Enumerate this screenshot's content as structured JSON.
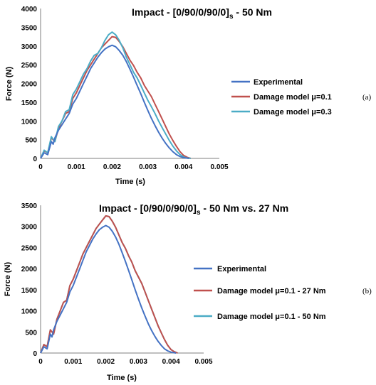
{
  "colors": {
    "experimental": "#4472c4",
    "mu01": "#c0504d",
    "mu03": "#4bacc6"
  },
  "chart_data": [
    {
      "type": "line",
      "title": "Impact - [0/90/0/90/0]s - 50 Nm",
      "title_main": "Impact - [0/90/0/90/0]",
      "title_sub": "s",
      "title_tail": " - 50 Nm",
      "xlabel": "Time (s)",
      "ylabel": "Force (N)",
      "xlim": [
        0,
        0.005
      ],
      "ylim": [
        0,
        4000
      ],
      "xticks": [
        "0",
        "0.001",
        "0.002",
        "0.003",
        "0.004",
        "0.005"
      ],
      "yticks": [
        "0",
        "500",
        "1000",
        "1500",
        "2000",
        "2500",
        "3000",
        "3500",
        "4000"
      ],
      "grid": false,
      "legend": "right",
      "panel_label": "(a)",
      "series": [
        {
          "name": "Experimental",
          "x": [
            0,
            0.0001,
            0.0002,
            0.0003,
            0.00035,
            0.0004,
            0.0005,
            0.0006,
            0.0007,
            0.0008,
            0.0009,
            0.001,
            0.0011,
            0.0012,
            0.0013,
            0.0014,
            0.0015,
            0.0016,
            0.0017,
            0.0018,
            0.0019,
            0.002,
            0.0021,
            0.0022,
            0.0023,
            0.0024,
            0.0025,
            0.0026,
            0.0027,
            0.0028,
            0.0029,
            0.003,
            0.0031,
            0.0032,
            0.0033,
            0.0034,
            0.0035,
            0.0036,
            0.0037,
            0.0038,
            0.0039,
            0.004,
            0.00415
          ],
          "y": [
            0,
            150,
            100,
            450,
            380,
            550,
            750,
            900,
            1050,
            1200,
            1450,
            1600,
            1800,
            2000,
            2200,
            2400,
            2550,
            2700,
            2820,
            2920,
            2980,
            3020,
            2980,
            2880,
            2750,
            2580,
            2380,
            2170,
            1950,
            1730,
            1500,
            1280,
            1070,
            880,
            700,
            540,
            400,
            280,
            180,
            100,
            50,
            20,
            0
          ]
        },
        {
          "name": "Damage model μ=0.1",
          "x": [
            0,
            0.0001,
            0.0002,
            0.0003,
            0.0004,
            0.0005,
            0.0006,
            0.0007,
            0.0008,
            0.0009,
            0.001,
            0.0011,
            0.0012,
            0.0013,
            0.0014,
            0.0015,
            0.0016,
            0.0017,
            0.0018,
            0.0019,
            0.002,
            0.0021,
            0.0022,
            0.0023,
            0.0024,
            0.0025,
            0.0026,
            0.0027,
            0.0028,
            0.0029,
            0.003,
            0.0031,
            0.0032,
            0.0033,
            0.0034,
            0.0035,
            0.0036,
            0.0037,
            0.0038,
            0.0039,
            0.004,
            0.0041,
            0.0042
          ],
          "y": [
            0,
            200,
            150,
            550,
            450,
            800,
            1000,
            1200,
            1250,
            1600,
            1750,
            1950,
            2150,
            2350,
            2500,
            2650,
            2800,
            2950,
            3050,
            3150,
            3250,
            3230,
            3120,
            2980,
            2800,
            2620,
            2480,
            2300,
            2150,
            1950,
            1800,
            1650,
            1450,
            1250,
            1050,
            850,
            650,
            480,
            320,
            180,
            80,
            30,
            0
          ]
        },
        {
          "name": "Damage model μ=0.3",
          "x": [
            0,
            0.0001,
            0.0002,
            0.0003,
            0.0004,
            0.0005,
            0.0006,
            0.0007,
            0.0008,
            0.0009,
            0.001,
            0.0011,
            0.0012,
            0.0013,
            0.0014,
            0.0015,
            0.0016,
            0.0017,
            0.0018,
            0.0019,
            0.002,
            0.0021,
            0.0022,
            0.0023,
            0.0024,
            0.0025,
            0.0026,
            0.0027,
            0.0028,
            0.0029,
            0.003,
            0.0031,
            0.0032,
            0.0033,
            0.0034,
            0.0035,
            0.0036,
            0.0037,
            0.0038,
            0.0039,
            0.004,
            0.0041,
            0.0042
          ],
          "y": [
            0,
            220,
            150,
            580,
            450,
            850,
            1000,
            1250,
            1300,
            1700,
            1850,
            2050,
            2250,
            2400,
            2600,
            2750,
            2800,
            2950,
            3150,
            3300,
            3370,
            3300,
            3150,
            2950,
            2700,
            2500,
            2300,
            2150,
            1950,
            1750,
            1550,
            1380,
            1200,
            1000,
            820,
            650,
            480,
            330,
            200,
            100,
            40,
            10,
            0
          ]
        }
      ]
    },
    {
      "type": "line",
      "title": "Impact - [0/90/0/90/0]s - 50 Nm vs. 27 Nm",
      "title_main": "Impact - [0/90/0/90/0]",
      "title_sub": "s",
      "title_tail": " - 50 Nm vs. 27 Nm",
      "xlabel": "Time (s)",
      "ylabel": "Force (N)",
      "xlim": [
        0,
        0.005
      ],
      "ylim": [
        0,
        3500
      ],
      "xticks": [
        "0",
        "0.001",
        "0.002",
        "0.003",
        "0.004",
        "0.005"
      ],
      "yticks": [
        "0",
        "500",
        "1000",
        "1500",
        "2000",
        "2500",
        "3000",
        "3500"
      ],
      "grid": false,
      "legend": "right",
      "panel_label": "(b)",
      "series": [
        {
          "name": "Experimental",
          "x": [
            0,
            0.0001,
            0.0002,
            0.0003,
            0.00035,
            0.0004,
            0.0005,
            0.0006,
            0.0007,
            0.0008,
            0.0009,
            0.001,
            0.0011,
            0.0012,
            0.0013,
            0.0014,
            0.0015,
            0.0016,
            0.0017,
            0.0018,
            0.0019,
            0.002,
            0.0021,
            0.0022,
            0.0023,
            0.0024,
            0.0025,
            0.0026,
            0.0027,
            0.0028,
            0.0029,
            0.003,
            0.0031,
            0.0032,
            0.0033,
            0.0034,
            0.0035,
            0.0036,
            0.0037,
            0.0038,
            0.0039,
            0.004,
            0.00415
          ],
          "y": [
            0,
            150,
            100,
            450,
            380,
            550,
            750,
            900,
            1050,
            1200,
            1450,
            1600,
            1800,
            2000,
            2200,
            2400,
            2550,
            2700,
            2820,
            2920,
            2980,
            3020,
            2980,
            2880,
            2750,
            2580,
            2380,
            2170,
            1950,
            1730,
            1500,
            1280,
            1070,
            880,
            700,
            540,
            400,
            280,
            180,
            100,
            50,
            20,
            0
          ]
        },
        {
          "name": "Damage model μ=0.1 - 27 Nm",
          "x": [
            0,
            0.0001,
            0.0002,
            0.0003,
            0.0004,
            0.0005,
            0.0006,
            0.0007,
            0.0008,
            0.0009,
            0.001,
            0.0011,
            0.0012,
            0.0013,
            0.0014,
            0.0015,
            0.0016,
            0.0017,
            0.0018,
            0.0019,
            0.002,
            0.0021,
            0.0022,
            0.0023,
            0.0024,
            0.0025,
            0.0026,
            0.0027,
            0.0028,
            0.0029,
            0.003,
            0.0031,
            0.0032,
            0.0033,
            0.0034,
            0.0035,
            0.0036,
            0.0037,
            0.0038,
            0.0039,
            0.004,
            0.0041,
            0.0042
          ],
          "y": [
            0,
            200,
            150,
            550,
            450,
            800,
            1000,
            1200,
            1250,
            1600,
            1750,
            1950,
            2150,
            2350,
            2500,
            2650,
            2800,
            2950,
            3050,
            3150,
            3250,
            3230,
            3120,
            2980,
            2800,
            2620,
            2480,
            2300,
            2150,
            1950,
            1800,
            1650,
            1450,
            1250,
            1050,
            850,
            650,
            480,
            320,
            180,
            80,
            30,
            0
          ]
        },
        {
          "name": "Damage model μ=0.1 - 50 Nm",
          "x": [
            0,
            0.0001,
            0.0002,
            0.0003,
            0.0004,
            0.0005,
            0.0006,
            0.0007,
            0.0008,
            0.0009,
            0.001,
            0.0011,
            0.0012,
            0.0013,
            0.0014,
            0.0015,
            0.0016,
            0.0017,
            0.0018,
            0.0019,
            0.002,
            0.0021,
            0.0022,
            0.0023,
            0.0024,
            0.0025,
            0.0026,
            0.0027,
            0.0028,
            0.0029,
            0.003,
            0.0031,
            0.0032,
            0.0033,
            0.0034,
            0.0035,
            0.0036,
            0.0037,
            0.0038,
            0.0039,
            0.004,
            0.0041,
            0.0042
          ],
          "y": [
            0,
            200,
            150,
            550,
            450,
            800,
            1000,
            1200,
            1250,
            1600,
            1750,
            1950,
            2150,
            2350,
            2500,
            2650,
            2800,
            2950,
            3050,
            3150,
            3250,
            3230,
            3120,
            2980,
            2800,
            2620,
            2480,
            2300,
            2150,
            1950,
            1800,
            1650,
            1450,
            1250,
            1050,
            850,
            650,
            480,
            320,
            180,
            80,
            30,
            0
          ]
        }
      ]
    }
  ]
}
